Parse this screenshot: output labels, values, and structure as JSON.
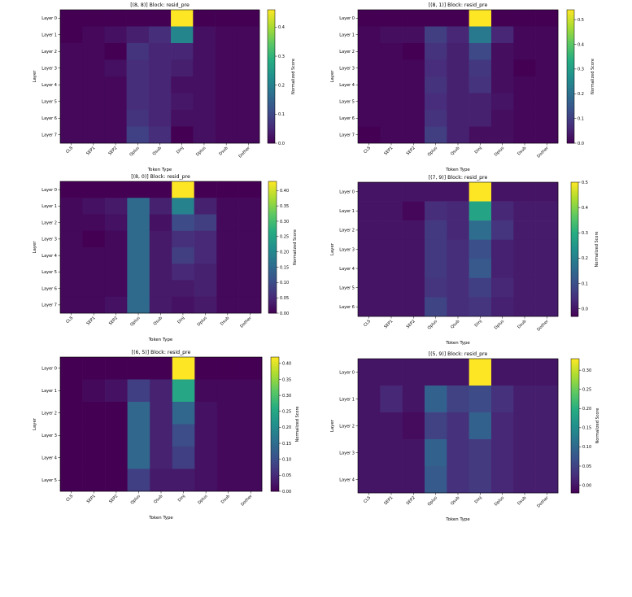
{
  "chart_data": [
    {
      "type": "heatmap",
      "title": "[(8, 8)] Block: resid_pre",
      "xlabel": "Token Type",
      "ylabel": "Layer",
      "colorbar_label": "Normalized Score",
      "colormap": "viridis",
      "x_categories": [
        "CLS",
        "SEP1",
        "SEP2",
        "Qplus",
        "Qsub",
        "Dinj",
        "Dplus",
        "Dsub",
        "Dother"
      ],
      "y_categories": [
        "Layer 0",
        "Layer 1",
        "Layer 2",
        "Layer 3",
        "Layer 4",
        "Layer 5",
        "Layer 6",
        "Layer 7"
      ],
      "vmin": 0,
      "vmax": 0.46,
      "colorbar_ticks": [
        "0.0",
        "0.1",
        "0.2",
        "0.3",
        "0.4"
      ],
      "colorbar_tick_values": [
        0,
        0.1,
        0.2,
        0.3,
        0.4
      ],
      "values": [
        [
          0.0,
          0.0,
          0.0,
          0.0,
          0.0,
          0.46,
          0.0,
          0.0,
          0.0
        ],
        [
          0.0,
          0.01,
          0.02,
          0.04,
          0.06,
          0.21,
          0.02,
          0.01,
          0.01
        ],
        [
          0.01,
          0.01,
          0.0,
          0.07,
          0.05,
          0.05,
          0.02,
          0.01,
          0.01
        ],
        [
          0.01,
          0.01,
          0.02,
          0.06,
          0.05,
          0.04,
          0.02,
          0.01,
          0.01
        ],
        [
          0.01,
          0.01,
          0.01,
          0.06,
          0.05,
          0.02,
          0.02,
          0.01,
          0.01
        ],
        [
          0.01,
          0.01,
          0.01,
          0.06,
          0.05,
          0.03,
          0.02,
          0.01,
          0.01
        ],
        [
          0.01,
          0.01,
          0.01,
          0.07,
          0.05,
          0.02,
          0.02,
          0.01,
          0.01
        ],
        [
          0.01,
          0.01,
          0.01,
          0.09,
          0.06,
          0.0,
          0.02,
          0.01,
          0.01
        ]
      ]
    },
    {
      "type": "heatmap",
      "title": "[(8, 1)] Block: resid_pre",
      "xlabel": "Token Type",
      "ylabel": "Layer",
      "colorbar_label": "Normalized Score",
      "colormap": "viridis",
      "x_categories": [
        "CLS",
        "SEP1",
        "SEP2",
        "Qplus",
        "Qsub",
        "Dinj",
        "Dplus",
        "Dsub",
        "Dother"
      ],
      "y_categories": [
        "Layer 0",
        "Layer 1",
        "Layer 2",
        "Layer 3",
        "Layer 4",
        "Layer 5",
        "Layer 6",
        "Layer 7"
      ],
      "vmin": 0,
      "vmax": 0.54,
      "colorbar_ticks": [
        "0.0",
        "0.1",
        "0.2",
        "0.3",
        "0.4",
        "0.5"
      ],
      "colorbar_tick_values": [
        0,
        0.1,
        0.2,
        0.3,
        0.4,
        0.5
      ],
      "values": [
        [
          0.0,
          0.0,
          0.0,
          0.0,
          0.0,
          0.54,
          0.0,
          0.0,
          0.0
        ],
        [
          0.01,
          0.02,
          0.02,
          0.1,
          0.06,
          0.22,
          0.06,
          0.01,
          0.01
        ],
        [
          0.01,
          0.01,
          0.0,
          0.08,
          0.05,
          0.12,
          0.02,
          0.01,
          0.01
        ],
        [
          0.01,
          0.01,
          0.01,
          0.07,
          0.05,
          0.09,
          0.02,
          0.0,
          0.01
        ],
        [
          0.01,
          0.01,
          0.01,
          0.08,
          0.05,
          0.08,
          0.02,
          0.01,
          0.01
        ],
        [
          0.01,
          0.01,
          0.01,
          0.07,
          0.05,
          0.05,
          0.03,
          0.01,
          0.01
        ],
        [
          0.01,
          0.01,
          0.01,
          0.08,
          0.05,
          0.05,
          0.02,
          0.01,
          0.01
        ],
        [
          0.0,
          0.01,
          0.01,
          0.1,
          0.05,
          0.02,
          0.02,
          0.01,
          0.01
        ]
      ]
    },
    {
      "type": "heatmap",
      "title": "[(8, 0)] Block: resid_pre",
      "xlabel": "Token Type",
      "ylabel": "Layer",
      "colorbar_label": "Normalized Score",
      "colormap": "viridis",
      "x_categories": [
        "CLS",
        "SEP1",
        "SEP2",
        "Qplus",
        "Qsub",
        "Dinj",
        "Dplus",
        "Dsub",
        "Dother"
      ],
      "y_categories": [
        "Layer 0",
        "Layer 1",
        "Layer 2",
        "Layer 3",
        "Layer 4",
        "Layer 5",
        "Layer 6",
        "Layer 7"
      ],
      "vmin": 0,
      "vmax": 0.43,
      "colorbar_ticks": [
        "0.00",
        "0.05",
        "0.10",
        "0.15",
        "0.20",
        "0.25",
        "0.30",
        "0.35",
        "0.40"
      ],
      "colorbar_tick_values": [
        0,
        0.05,
        0.1,
        0.15,
        0.2,
        0.25,
        0.3,
        0.35,
        0.4
      ],
      "values": [
        [
          0.0,
          0.0,
          0.0,
          0.0,
          0.0,
          0.43,
          0.0,
          0.0,
          0.0
        ],
        [
          0.01,
          0.02,
          0.03,
          0.15,
          0.04,
          0.19,
          0.04,
          0.01,
          0.01
        ],
        [
          0.01,
          0.01,
          0.02,
          0.15,
          0.02,
          0.1,
          0.08,
          0.01,
          0.01
        ],
        [
          0.01,
          0.0,
          0.01,
          0.15,
          0.03,
          0.06,
          0.05,
          0.01,
          0.01
        ],
        [
          0.01,
          0.01,
          0.01,
          0.15,
          0.03,
          0.08,
          0.05,
          0.01,
          0.01
        ],
        [
          0.01,
          0.01,
          0.01,
          0.15,
          0.03,
          0.05,
          0.04,
          0.01,
          0.01
        ],
        [
          0.01,
          0.01,
          0.01,
          0.15,
          0.03,
          0.03,
          0.04,
          0.01,
          0.01
        ],
        [
          0.01,
          0.01,
          0.02,
          0.15,
          0.03,
          0.02,
          0.03,
          0.01,
          0.01
        ]
      ]
    },
    {
      "type": "heatmap",
      "title": "[(7, 9)] Block: resid_pre",
      "xlabel": "Token Type",
      "ylabel": "Layer",
      "colorbar_label": "Normalized Score",
      "colormap": "viridis",
      "x_categories": [
        "CLS",
        "SEP1",
        "SEP2",
        "Qplus",
        "Qsub",
        "Dinj",
        "Dplus",
        "Dsub",
        "Dother"
      ],
      "y_categories": [
        "Layer 0",
        "Layer 1",
        "Layer 2",
        "Layer 3",
        "Layer 4",
        "Layer 5",
        "Layer 6"
      ],
      "vmin": -0.03,
      "vmax": 0.5,
      "colorbar_ticks": [
        "0.0",
        "0.1",
        "0.2",
        "0.3",
        "0.4",
        "0.5"
      ],
      "colorbar_tick_values": [
        0,
        0.1,
        0.2,
        0.3,
        0.4,
        0.5
      ],
      "values": [
        [
          0.0,
          0.0,
          0.0,
          0.0,
          0.0,
          0.5,
          0.0,
          0.0,
          0.0
        ],
        [
          0.0,
          0.0,
          -0.02,
          0.04,
          0.03,
          0.28,
          0.03,
          0.01,
          0.01
        ],
        [
          0.0,
          0.0,
          0.0,
          0.06,
          0.03,
          0.16,
          0.05,
          0.01,
          0.01
        ],
        [
          0.0,
          0.0,
          0.0,
          0.06,
          0.04,
          0.1,
          0.02,
          0.01,
          0.01
        ],
        [
          0.0,
          0.0,
          0.0,
          0.06,
          0.04,
          0.12,
          0.02,
          0.01,
          0.01
        ],
        [
          0.0,
          0.0,
          0.0,
          0.05,
          0.04,
          0.07,
          0.03,
          0.01,
          0.01
        ],
        [
          0.0,
          0.0,
          0.0,
          0.08,
          0.04,
          0.05,
          0.02,
          0.01,
          0.01
        ]
      ]
    },
    {
      "type": "heatmap",
      "title": "[(6, 5)] Block: resid_pre",
      "xlabel": "Token Type",
      "ylabel": "Layer",
      "colorbar_label": "Normalized Score",
      "colormap": "viridis",
      "x_categories": [
        "CLS",
        "SEP1",
        "SEP2",
        "Qplus",
        "Qsub",
        "Dinj",
        "Dplus",
        "Dsub",
        "Dother"
      ],
      "y_categories": [
        "Layer 0",
        "Layer 1",
        "Layer 2",
        "Layer 3",
        "Layer 4",
        "Layer 5"
      ],
      "vmin": 0,
      "vmax": 0.42,
      "colorbar_ticks": [
        "0.00",
        "0.05",
        "0.10",
        "0.15",
        "0.20",
        "0.25",
        "0.30",
        "0.35",
        "0.40"
      ],
      "colorbar_tick_values": [
        0,
        0.05,
        0.1,
        0.15,
        0.2,
        0.25,
        0.3,
        0.35,
        0.4
      ],
      "values": [
        [
          0.0,
          0.0,
          0.0,
          0.0,
          0.0,
          0.42,
          0.0,
          0.0,
          0.0
        ],
        [
          0.0,
          0.01,
          0.02,
          0.08,
          0.04,
          0.25,
          0.01,
          0.01,
          0.01
        ],
        [
          0.0,
          0.0,
          0.0,
          0.14,
          0.04,
          0.14,
          0.02,
          0.01,
          0.01
        ],
        [
          0.0,
          0.0,
          0.0,
          0.14,
          0.04,
          0.1,
          0.02,
          0.01,
          0.01
        ],
        [
          0.0,
          0.0,
          0.0,
          0.14,
          0.04,
          0.08,
          0.02,
          0.01,
          0.01
        ],
        [
          0.0,
          0.0,
          0.0,
          0.08,
          0.03,
          0.03,
          0.02,
          0.01,
          0.01
        ]
      ]
    },
    {
      "type": "heatmap",
      "title": "[(5, 9)] Block: resid_pre",
      "xlabel": "Token Type",
      "ylabel": "Layer",
      "colorbar_label": "Normalized Score",
      "colormap": "viridis",
      "x_categories": [
        "CLS",
        "SEP1",
        "SEP2",
        "Qplus",
        "Qsub",
        "Dinj",
        "Dplus",
        "Dsub",
        "Dother"
      ],
      "y_categories": [
        "Layer 0",
        "Layer 1",
        "Layer 2",
        "Layer 3",
        "Layer 4"
      ],
      "vmin": -0.02,
      "vmax": 0.33,
      "colorbar_ticks": [
        "0.00",
        "0.05",
        "0.10",
        "0.15",
        "0.20",
        "0.25",
        "0.30"
      ],
      "colorbar_tick_values": [
        0,
        0.05,
        0.1,
        0.15,
        0.2,
        0.25,
        0.3
      ],
      "values": [
        [
          0.0,
          0.0,
          0.0,
          0.0,
          0.0,
          0.33,
          0.0,
          0.0,
          0.0
        ],
        [
          0.0,
          0.02,
          0.0,
          0.09,
          0.05,
          0.06,
          0.03,
          0.01,
          0.01
        ],
        [
          0.0,
          0.0,
          -0.01,
          0.05,
          0.03,
          0.09,
          0.02,
          0.01,
          0.01
        ],
        [
          0.0,
          0.0,
          0.0,
          0.09,
          0.03,
          0.04,
          0.02,
          0.01,
          0.01
        ],
        [
          0.0,
          0.0,
          0.0,
          0.08,
          0.03,
          0.04,
          0.02,
          0.01,
          0.01
        ]
      ]
    }
  ]
}
